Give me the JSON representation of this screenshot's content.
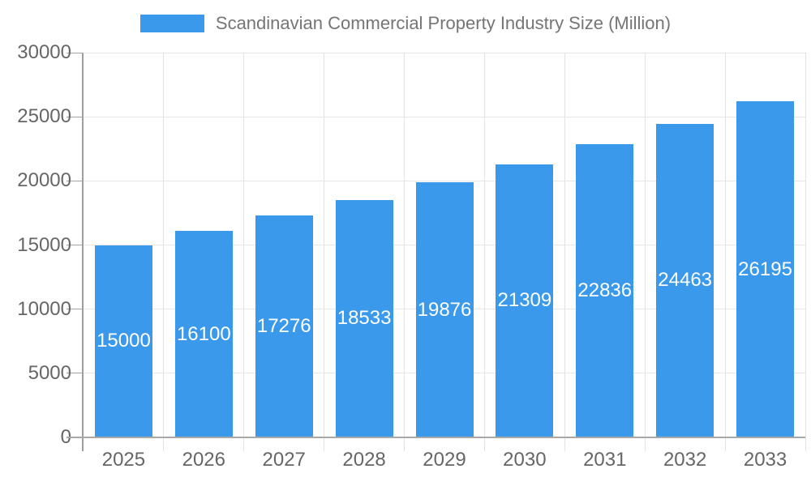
{
  "legend": {
    "label": "Scandinavian Commercial Property Industry Size (Million)"
  },
  "chart_data": {
    "type": "bar",
    "title": "Scandinavian Commercial Property Industry Size (Million)",
    "categories": [
      "2025",
      "2026",
      "2027",
      "2028",
      "2029",
      "2030",
      "2031",
      "2032",
      "2033"
    ],
    "values": [
      15000,
      16100,
      17276,
      18533,
      19876,
      21309,
      22836,
      24463,
      26195
    ],
    "xlabel": "",
    "ylabel": "",
    "ylim": [
      0,
      30000
    ],
    "yticks": [
      0,
      5000,
      10000,
      15000,
      20000,
      25000,
      30000
    ],
    "grid": true,
    "legend_position": "top",
    "value_labels": "inside-center-white",
    "colors": {
      "bar": "#3b99ec",
      "grid": "#e6e6e6",
      "grid_stub": "#a3a3a3",
      "axis_line": "#9e9e9e",
      "baseline": "#a8a8a8",
      "tick_label": "#666666",
      "title": "#757575",
      "bar_label": "#ffffff",
      "background": "#ffffff"
    }
  }
}
